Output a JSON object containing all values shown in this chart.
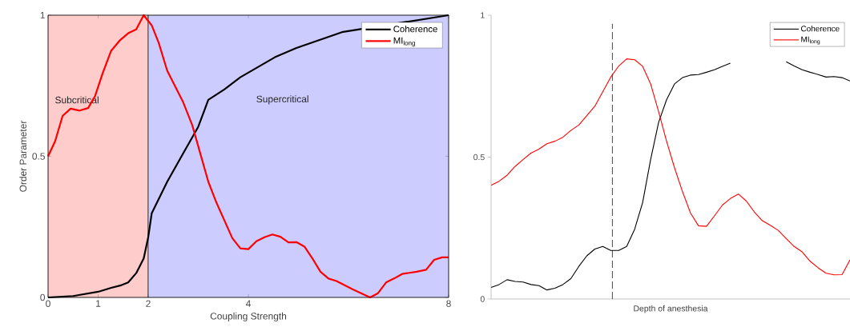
{
  "chart_data": [
    {
      "type": "line",
      "xlabel": "Coupling Strength",
      "ylabel": "Order Parameter",
      "xlim": [
        0,
        8
      ],
      "ylim": [
        0,
        1
      ],
      "xticks": [
        0,
        1,
        2,
        4,
        8
      ],
      "yticks": [
        0,
        0.5,
        1
      ],
      "legend": "top right",
      "marker": "none",
      "line_style": "solid",
      "bands": [
        {
          "axis": "x",
          "from": 0,
          "to": 2,
          "label": "Subcritical",
          "color": "#ffcccc"
        },
        {
          "axis": "x",
          "from": 2,
          "to": 8,
          "label": "Supercritical",
          "color": "#ccccff"
        }
      ],
      "series": [
        {
          "name": "Coherence",
          "color": "#000000",
          "x": [
            0,
            0.5,
            1.0,
            1.26,
            1.44,
            1.6,
            1.76,
            1.91,
            2.0,
            2.07,
            2.38,
            2.69,
            3.0,
            3.2,
            3.52,
            3.84,
            4.53,
            4.96,
            5.87,
            8.0
          ],
          "values": [
            0.0,
            0.005,
            0.02,
            0.034,
            0.042,
            0.053,
            0.086,
            0.138,
            0.213,
            0.298,
            0.41,
            0.508,
            0.605,
            0.7,
            0.737,
            0.78,
            0.851,
            0.884,
            0.94,
            1.0
          ]
        },
        {
          "name": "MI$_{long}$",
          "color": "#ff0000",
          "x": [
            0,
            0.14,
            0.29,
            0.45,
            0.63,
            0.8,
            0.94,
            1.09,
            1.26,
            1.44,
            1.6,
            1.76,
            1.91,
            2.07,
            2.21,
            2.38,
            2.69,
            2.88,
            3.2,
            3.36,
            3.68,
            3.84,
            4.0,
            4.16,
            4.32,
            4.48,
            4.64,
            4.8,
            4.96,
            5.12,
            5.28,
            5.44,
            5.6,
            5.76,
            6.08,
            6.43,
            6.59,
            6.75,
            6.91,
            7.07,
            7.36,
            7.55,
            7.71,
            7.87,
            8.0
          ],
          "values": [
            0.5,
            0.553,
            0.643,
            0.669,
            0.662,
            0.671,
            0.714,
            0.794,
            0.874,
            0.912,
            0.936,
            0.95,
            1.0,
            0.964,
            0.902,
            0.803,
            0.695,
            0.61,
            0.41,
            0.337,
            0.21,
            0.174,
            0.171,
            0.199,
            0.213,
            0.223,
            0.215,
            0.195,
            0.196,
            0.18,
            0.138,
            0.091,
            0.067,
            0.058,
            0.029,
            0.0,
            0.015,
            0.053,
            0.067,
            0.083,
            0.091,
            0.098,
            0.133,
            0.142,
            0.142
          ]
        }
      ]
    },
    {
      "type": "line",
      "xlabel": "Depth of anesthesia",
      "ylim": [
        0,
        1
      ],
      "yticks": [
        0,
        0.5,
        1
      ],
      "legend": "top right",
      "marker": "none",
      "line_style": "solid",
      "categories": [
        null,
        null,
        null,
        null,
        null,
        null,
        null,
        null,
        null,
        null,
        null,
        null,
        null,
        null,
        null,
        null,
        null,
        null,
        null,
        null,
        null,
        null,
        null,
        null,
        null,
        null,
        null,
        null,
        null,
        null,
        null,
        null,
        null,
        null,
        null,
        null,
        null,
        null,
        null,
        null,
        null,
        null,
        null,
        null,
        null,
        null
      ],
      "series": [
        {
          "name": "Coherence",
          "color": "#000000",
          "values": [
            0.041,
            0.051,
            0.068,
            0.062,
            0.06,
            0.051,
            0.047,
            0.032,
            0.038,
            0.051,
            0.072,
            0.115,
            0.152,
            0.176,
            0.185,
            0.171,
            0.171,
            0.185,
            0.246,
            0.34,
            0.491,
            0.622,
            0.702,
            0.758,
            0.78,
            0.789,
            0.791,
            0.799,
            0.808,
            0.82,
            0.831,
            null,
            null,
            null,
            null,
            null,
            null,
            0.836,
            0.821,
            0.808,
            0.799,
            0.791,
            0.782,
            0.784,
            0.78,
            0.768
          ]
        },
        {
          "name": "MI$_{long}$",
          "color": "#ff0000",
          "values": [
            0.401,
            0.415,
            0.436,
            0.467,
            0.491,
            0.514,
            0.528,
            0.547,
            0.556,
            0.57,
            0.594,
            0.613,
            0.646,
            0.679,
            0.73,
            0.782,
            0.821,
            0.846,
            0.843,
            0.82,
            0.758,
            0.66,
            0.556,
            0.462,
            0.378,
            0.303,
            0.258,
            0.256,
            0.293,
            0.331,
            0.354,
            0.37,
            0.345,
            0.307,
            0.276,
            0.26,
            0.242,
            0.213,
            0.185,
            0.166,
            0.133,
            0.11,
            0.091,
            0.085,
            0.086,
            0.138
          ]
        }
      ]
    }
  ]
}
